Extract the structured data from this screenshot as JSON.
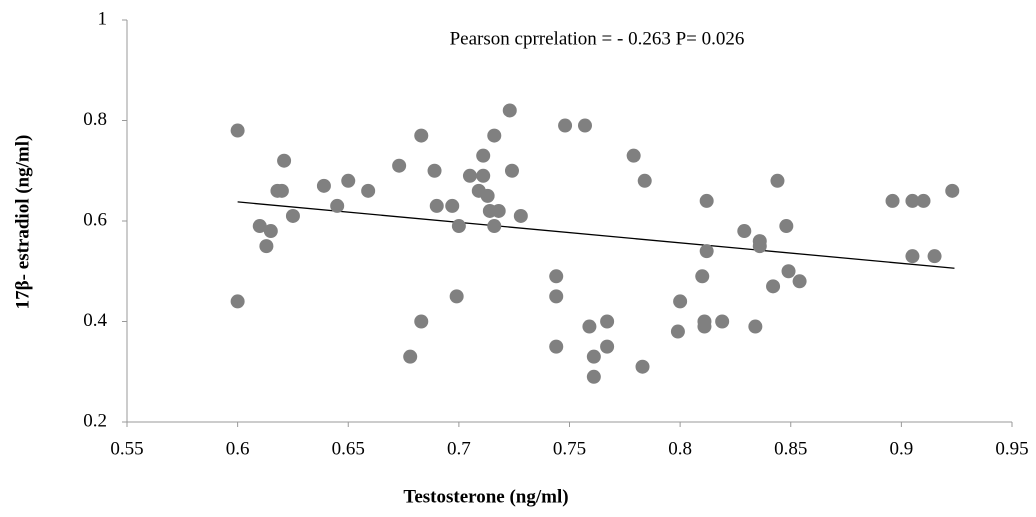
{
  "chart_data": {
    "type": "scatter",
    "annotation": "Pearson cprrelation = - 0.263 P= 0.026",
    "x_label": "Testosterone (ng/ml)",
    "y_label": "17β- estradiol (ng/ml)",
    "color": "#808080",
    "x": [
      0.6,
      0.6,
      0.61,
      0.613,
      0.615,
      0.618,
      0.62,
      0.621,
      0.625,
      0.639,
      0.645,
      0.65,
      0.659,
      0.673,
      0.678,
      0.683,
      0.683,
      0.689,
      0.69,
      0.697,
      0.699,
      0.7,
      0.705,
      0.709,
      0.711,
      0.711,
      0.713,
      0.714,
      0.716,
      0.716,
      0.718,
      0.723,
      0.724,
      0.728,
      0.744,
      0.744,
      0.744,
      0.748,
      0.757,
      0.759,
      0.761,
      0.761,
      0.767,
      0.767,
      0.779,
      0.783,
      0.784,
      0.799,
      0.8,
      0.81,
      0.811,
      0.811,
      0.812,
      0.812,
      0.819,
      0.829,
      0.834,
      0.836,
      0.836,
      0.842,
      0.844,
      0.848,
      0.849,
      0.854,
      0.896,
      0.905,
      0.905,
      0.91,
      0.915,
      0.923
    ],
    "values": [
      0.78,
      0.44,
      0.59,
      0.55,
      0.58,
      0.66,
      0.66,
      0.72,
      0.61,
      0.67,
      0.63,
      0.68,
      0.66,
      0.71,
      0.33,
      0.4,
      0.77,
      0.7,
      0.63,
      0.63,
      0.45,
      0.59,
      0.69,
      0.66,
      0.69,
      0.73,
      0.65,
      0.62,
      0.77,
      0.59,
      0.62,
      0.82,
      0.7,
      0.61,
      0.49,
      0.45,
      0.35,
      0.79,
      0.79,
      0.39,
      0.33,
      0.29,
      0.4,
      0.35,
      0.73,
      0.31,
      0.68,
      0.38,
      0.44,
      0.49,
      0.4,
      0.39,
      0.54,
      0.64,
      0.4,
      0.58,
      0.39,
      0.56,
      0.55,
      0.47,
      0.68,
      0.59,
      0.5,
      0.48,
      0.64,
      0.64,
      0.53,
      0.64,
      0.53,
      0.66
    ],
    "trendline": {
      "x": [
        0.6,
        0.924
      ],
      "y": [
        0.638,
        0.506
      ],
      "color": "#000000"
    },
    "xlim": [
      0.55,
      0.95
    ],
    "xticks": [
      0.55,
      0.6,
      0.65,
      0.7,
      0.75,
      0.8,
      0.85,
      0.9,
      0.95
    ],
    "ylim": [
      0.2,
      1
    ],
    "yticks": [
      0.2,
      0.4,
      0.6,
      0.8,
      1
    ],
    "grid": false
  }
}
